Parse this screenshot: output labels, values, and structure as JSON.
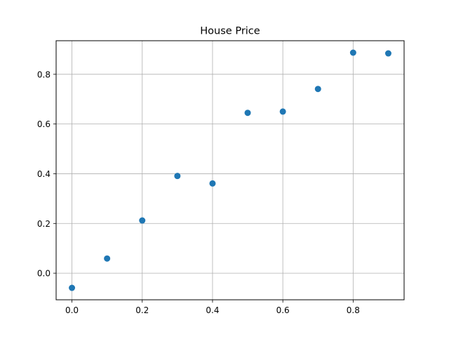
{
  "chart_data": {
    "type": "scatter",
    "title": "House Price",
    "xlabel": "",
    "ylabel": "",
    "grid": true,
    "xlim": [
      -0.045,
      0.945
    ],
    "ylim": [
      -0.107,
      0.935
    ],
    "xticks": [
      0.0,
      0.2,
      0.4,
      0.6,
      0.8
    ],
    "xtick_labels": [
      "0.0",
      "0.2",
      "0.4",
      "0.6",
      "0.8"
    ],
    "yticks": [
      0.0,
      0.2,
      0.4,
      0.6,
      0.8
    ],
    "ytick_labels": [
      "0.0",
      "0.2",
      "0.4",
      "0.6",
      "0.8"
    ],
    "marker_color": "#1f77b4",
    "grid_color": "#b0b0b0",
    "series": [
      {
        "x": [
          0.0,
          0.1,
          0.2,
          0.3,
          0.4,
          0.5,
          0.6,
          0.7,
          0.8,
          0.9
        ],
        "y": [
          -0.059,
          0.059,
          0.212,
          0.391,
          0.361,
          0.645,
          0.65,
          0.741,
          0.887,
          0.884
        ]
      }
    ]
  }
}
